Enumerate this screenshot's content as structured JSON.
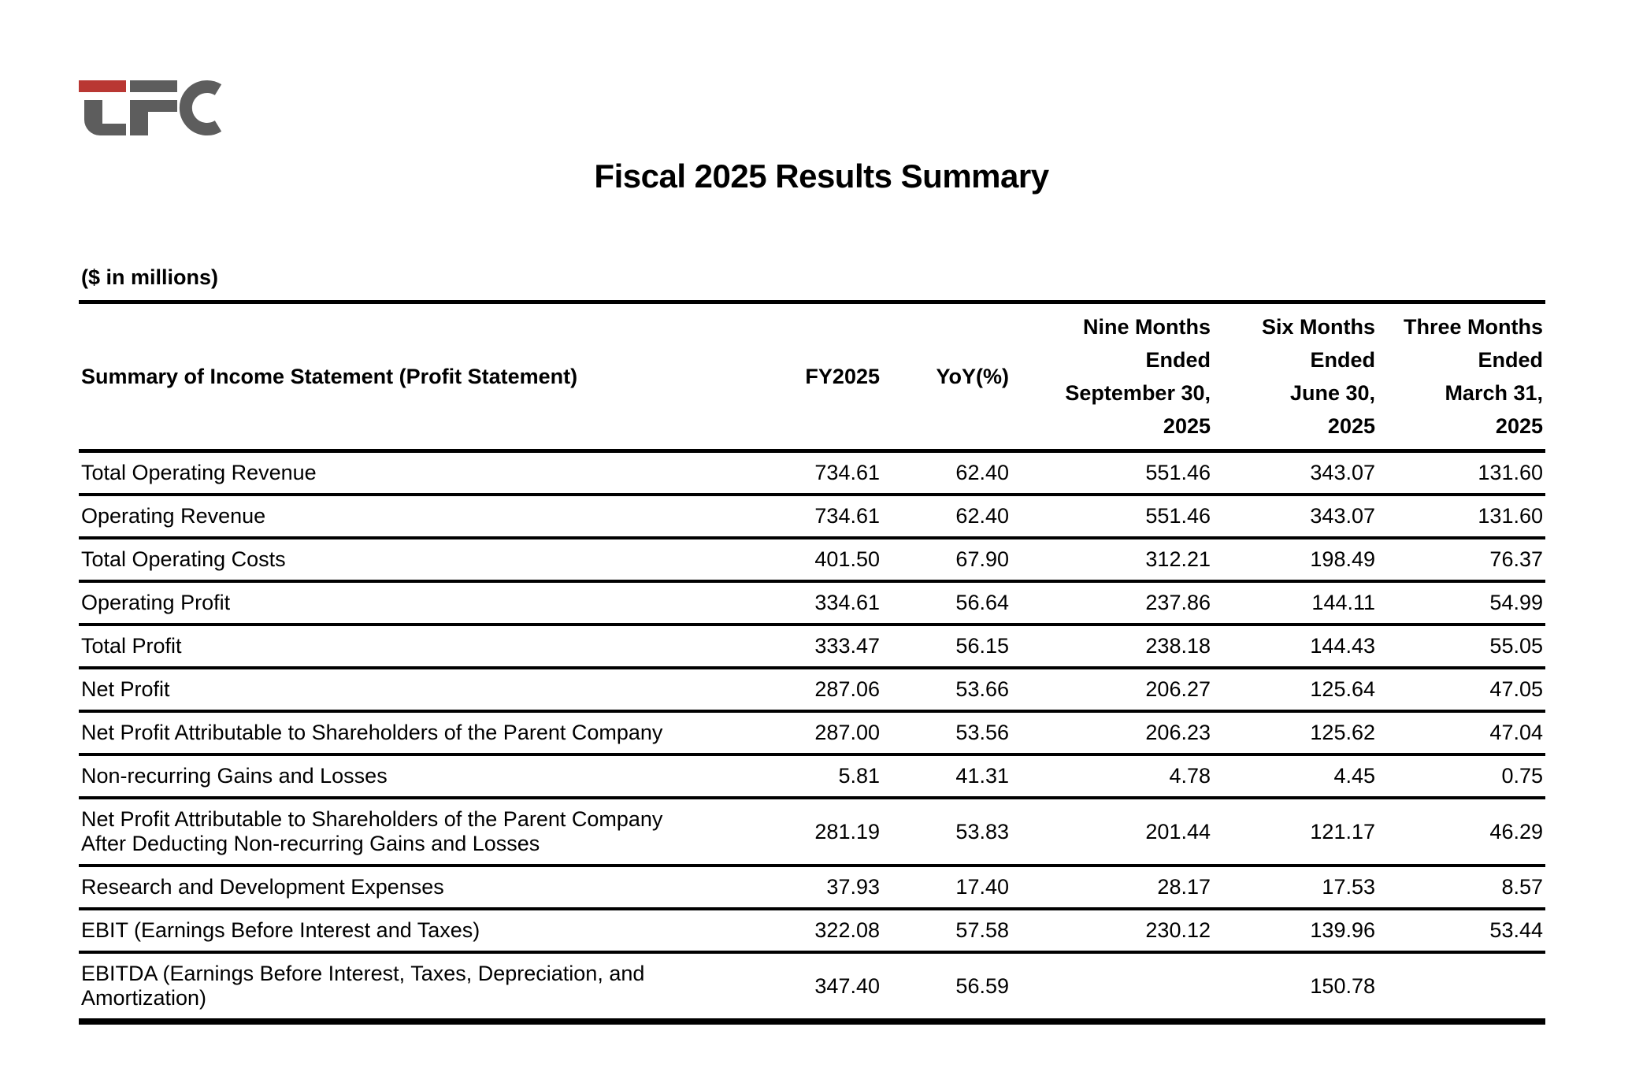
{
  "logo": {
    "monogram": "LFC",
    "accent_red": "#b93733",
    "gray": "#5d5d5d"
  },
  "title": "Fiscal 2025 Results Summary",
  "units_note": "($ in millions)",
  "table": {
    "columns": [
      "Summary of Income Statement (Profit Statement)",
      "FY2025",
      "YoY(%)",
      "Nine Months\nEnded\nSeptember 30,\n2025",
      "Six Months\nEnded\nJune 30,\n2025",
      "Three Months\nEnded\nMarch 31,\n2025"
    ],
    "rows": [
      {
        "label": "Total Operating Revenue",
        "values": [
          "734.61",
          "62.40",
          "551.46",
          "343.07",
          "131.60"
        ]
      },
      {
        "label": "Operating Revenue",
        "values": [
          "734.61",
          "62.40",
          "551.46",
          "343.07",
          "131.60"
        ]
      },
      {
        "label": "Total Operating Costs",
        "values": [
          "401.50",
          "67.90",
          "312.21",
          "198.49",
          "76.37"
        ]
      },
      {
        "label": "Operating Profit",
        "values": [
          "334.61",
          "56.64",
          "237.86",
          "144.11",
          "54.99"
        ]
      },
      {
        "label": "Total Profit",
        "values": [
          "333.47",
          "56.15",
          "238.18",
          "144.43",
          "55.05"
        ]
      },
      {
        "label": "Net Profit",
        "values": [
          "287.06",
          "53.66",
          "206.27",
          "125.64",
          "47.05"
        ]
      },
      {
        "label": "Net Profit Attributable to Shareholders of the Parent Company",
        "values": [
          "287.00",
          "53.56",
          "206.23",
          "125.62",
          "47.04"
        ]
      },
      {
        "label": "Non-recurring Gains and Losses",
        "values": [
          "5.81",
          "41.31",
          "4.78",
          "4.45",
          "0.75"
        ]
      },
      {
        "label": "Net Profit Attributable to Shareholders of the Parent Company\nAfter Deducting Non-recurring Gains and Losses",
        "values": [
          "281.19",
          "53.83",
          "201.44",
          "121.17",
          "46.29"
        ]
      },
      {
        "label": "Research and Development Expenses",
        "values": [
          "37.93",
          "17.40",
          "28.17",
          "17.53",
          "8.57"
        ]
      },
      {
        "label": "EBIT (Earnings Before Interest and Taxes)",
        "values": [
          "322.08",
          "57.58",
          "230.12",
          "139.96",
          "53.44"
        ]
      },
      {
        "label": "EBITDA (Earnings Before Interest, Taxes, Depreciation, and\nAmortization)",
        "values": [
          "347.40",
          "56.59",
          "",
          "150.78",
          ""
        ]
      }
    ]
  }
}
